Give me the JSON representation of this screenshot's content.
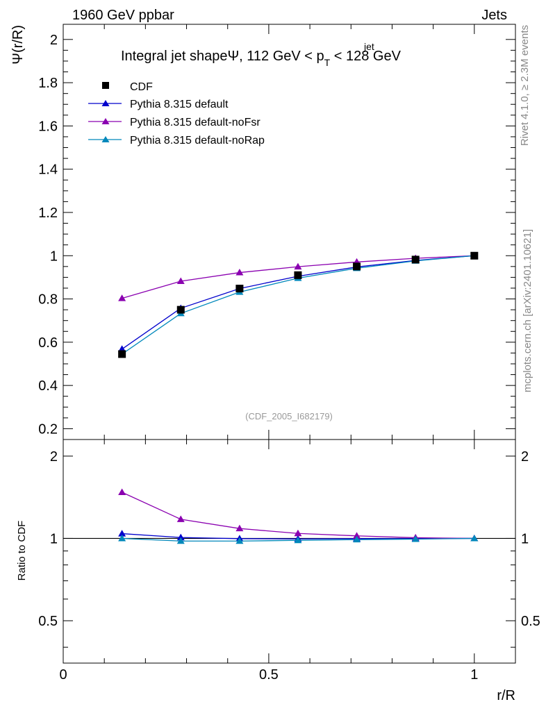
{
  "header": {
    "left": "1960 GeV ppbar",
    "right": "Jets"
  },
  "side_labels": {
    "rivet": "Rivet 4.1.0, ≥ 2.3M events",
    "mcplots": "mcplots.cern.ch [arXiv:2401.10621]"
  },
  "colors": {
    "cdf": "#000000",
    "default": "#0000cc",
    "noFsr": "#8a00b0",
    "noRap": "#0088bb"
  },
  "chart_data": [
    {
      "type": "line",
      "title_prefix": "Integral jet shapeΨ, 112 GeV < p",
      "title_sup": "jet",
      "title_sub": "T",
      "title_suffix": " < 128 GeV",
      "ylabel": "Ψ(r/R)",
      "xlabel": "r/R",
      "watermark": "(CDF_2005_I682179)",
      "xlim": [
        0,
        1.1
      ],
      "ylim": [
        0.15,
        2.07
      ],
      "yticks": [
        0.2,
        0.4,
        0.6,
        0.8,
        1,
        1.2,
        1.4,
        1.6,
        1.8,
        2
      ],
      "ytick_labels": [
        "0.2",
        "0.4",
        "0.6",
        "0.8",
        "1",
        "1.2",
        "1.4",
        "1.6",
        "1.8",
        "2"
      ],
      "x": [
        0.143,
        0.286,
        0.429,
        0.571,
        0.714,
        0.857,
        1.0
      ],
      "series": [
        {
          "name": "CDF",
          "key": "cdf",
          "marker": "square",
          "values": [
            0.545,
            0.75,
            0.848,
            0.91,
            0.95,
            0.982,
            1.0
          ]
        },
        {
          "name": "Pythia 8.315 default",
          "key": "default",
          "marker": "triangle",
          "values": [
            0.568,
            0.757,
            0.848,
            0.905,
            0.948,
            0.978,
            1.0
          ]
        },
        {
          "name": "Pythia 8.315 default-noFsr",
          "key": "noFsr",
          "marker": "triangle",
          "values": [
            0.803,
            0.882,
            0.922,
            0.949,
            0.971,
            0.988,
            1.0
          ]
        },
        {
          "name": "Pythia 8.315 default-noRap",
          "key": "noRap",
          "marker": "triangle",
          "values": [
            0.545,
            0.733,
            0.832,
            0.896,
            0.942,
            0.976,
            1.0
          ]
        }
      ]
    },
    {
      "type": "line",
      "ylabel": "Ratio to CDF",
      "xlabel": "r/R",
      "xlim": [
        0,
        1.1
      ],
      "ylim": [
        0.35,
        2.3
      ],
      "yscale": "log",
      "yticks": [
        0.5,
        1,
        2
      ],
      "ytick_labels": [
        "0.5",
        "1",
        "2"
      ],
      "xticks": [
        0,
        0.5,
        1
      ],
      "xtick_labels": [
        "0",
        "0.5",
        "1"
      ],
      "x": [
        0.143,
        0.286,
        0.429,
        0.571,
        0.714,
        0.857,
        1.0
      ],
      "series": [
        {
          "name": "Pythia 8.315 default",
          "key": "default",
          "values": [
            1.041,
            1.008,
            0.998,
            0.996,
            0.998,
            0.998,
            1.0
          ]
        },
        {
          "name": "Pythia 8.315 default-noFsr",
          "key": "noFsr",
          "values": [
            1.475,
            1.175,
            1.087,
            1.043,
            1.022,
            1.006,
            1.0
          ]
        },
        {
          "name": "Pythia 8.315 default-noRap",
          "key": "noRap",
          "values": [
            1.0,
            0.978,
            0.978,
            0.984,
            0.99,
            0.994,
            1.0
          ]
        }
      ]
    }
  ]
}
